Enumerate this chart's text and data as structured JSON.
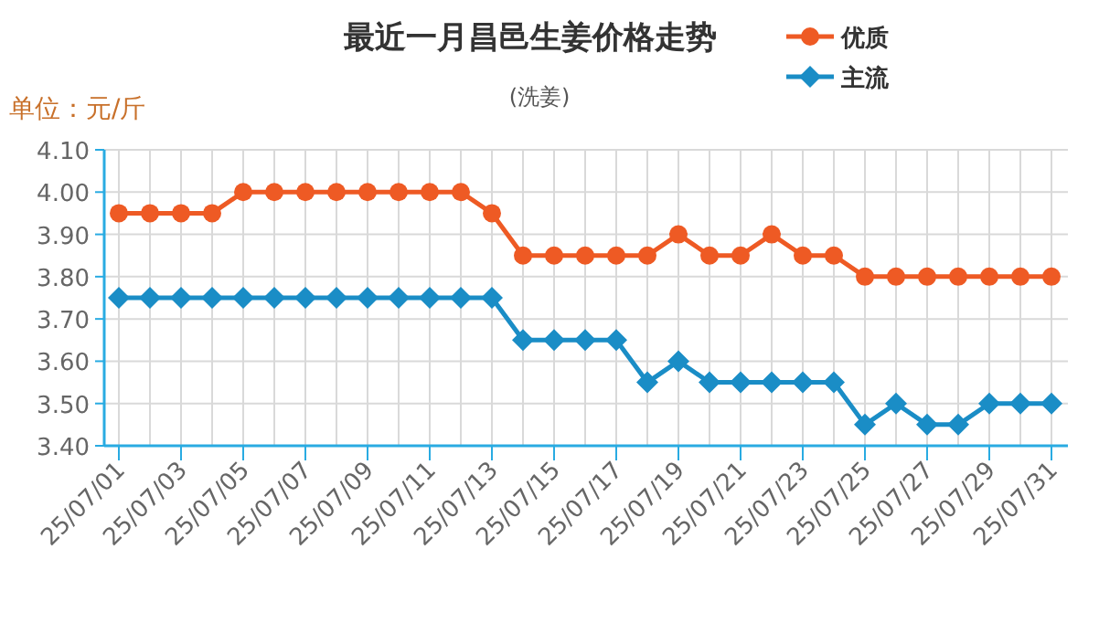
{
  "chart_data": {
    "type": "line",
    "title": "最近一月昌邑生姜价格走势",
    "subtitle": "(洗姜)",
    "ylabel": "单位：元/斤",
    "categories": [
      "25/07/01",
      null,
      "25/07/03",
      null,
      "25/07/05",
      null,
      "25/07/07",
      null,
      "25/07/09",
      null,
      "25/07/11",
      null,
      "25/07/13",
      null,
      "25/07/15",
      null,
      "25/07/17",
      null,
      "25/07/19",
      null,
      "25/07/21",
      null,
      "25/07/23",
      null,
      "25/07/25",
      null,
      "25/07/27",
      null,
      "25/07/29",
      null,
      "25/07/31"
    ],
    "series": [
      {
        "name": "优质",
        "color": "#ee5a24",
        "marker": "circle",
        "values": [
          3.95,
          3.95,
          3.95,
          3.95,
          4.0,
          4.0,
          4.0,
          4.0,
          4.0,
          4.0,
          4.0,
          4.0,
          3.95,
          3.85,
          3.85,
          3.85,
          3.85,
          3.85,
          3.9,
          3.85,
          3.85,
          3.9,
          3.85,
          3.85,
          3.8,
          3.8,
          3.8,
          3.8,
          3.8,
          3.8,
          3.8
        ]
      },
      {
        "name": "主流",
        "color": "#1a8dc6",
        "marker": "diamond",
        "values": [
          3.75,
          3.75,
          3.75,
          3.75,
          3.75,
          3.75,
          3.75,
          3.75,
          3.75,
          3.75,
          3.75,
          3.75,
          3.75,
          3.65,
          3.65,
          3.65,
          3.65,
          3.55,
          3.6,
          3.55,
          3.55,
          3.55,
          3.55,
          3.55,
          3.45,
          3.5,
          3.45,
          3.45,
          3.5,
          3.5,
          3.5
        ]
      }
    ],
    "ylim": [
      3.4,
      4.1
    ],
    "yticks": [
      {
        "value": 3.4,
        "label": "3.40"
      },
      {
        "value": 3.5,
        "label": "3.50"
      },
      {
        "value": 3.6,
        "label": "3.60"
      },
      {
        "value": 3.7,
        "label": "3.70"
      },
      {
        "value": 3.8,
        "label": "3.80"
      },
      {
        "value": 3.9,
        "label": "3.90"
      },
      {
        "value": 4.0,
        "label": "4.00"
      },
      {
        "value": 4.1,
        "label": "4.10"
      }
    ],
    "grid": true,
    "legend": "top right",
    "line_style": "solid"
  }
}
